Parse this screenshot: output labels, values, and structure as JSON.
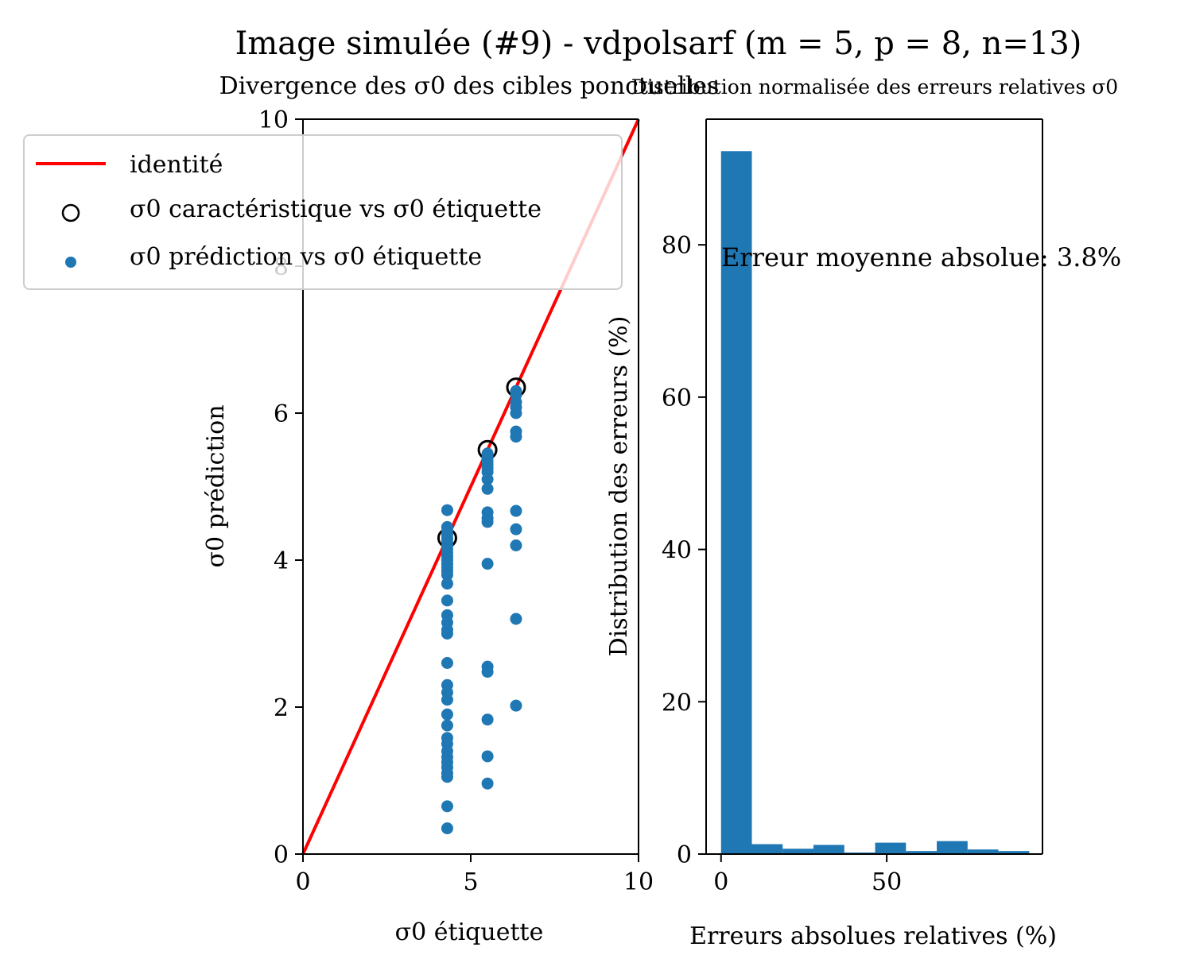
{
  "figure": {
    "suptitle": "Image simulée (#9) - vdpolsarf (m = 5, p = 8, n=13)"
  },
  "chart_data": [
    {
      "type": "scatter",
      "title": "Divergence des σ0 des cibles ponctuelles",
      "xlabel": "σ0 étiquette",
      "ylabel": "σ0 prédiction",
      "xlim": [
        0,
        10
      ],
      "ylim": [
        0,
        10
      ],
      "xticks": [
        0,
        5,
        10
      ],
      "yticks": [
        0,
        2,
        4,
        6,
        8,
        10
      ],
      "grid": false,
      "legend_position": "top-left",
      "identity": {
        "name": "identité",
        "color": "#ff0000",
        "x": [
          0,
          10
        ],
        "y": [
          0,
          10
        ]
      },
      "series": [
        {
          "name": "σ0 caractéristique vs σ0 étiquette",
          "marker": "open-circle",
          "color": "#000000",
          "points": [
            [
              4.3,
              4.3
            ],
            [
              5.5,
              5.5
            ],
            [
              6.35,
              6.35
            ]
          ]
        },
        {
          "name": "σ0 prédiction vs σ0 étiquette",
          "marker": "filled-circle",
          "color": "#1f77b4",
          "points": [
            [
              4.3,
              4.68
            ],
            [
              4.3,
              4.45
            ],
            [
              4.3,
              4.4
            ],
            [
              4.3,
              4.35
            ],
            [
              4.3,
              4.3
            ],
            [
              4.3,
              4.25
            ],
            [
              4.3,
              4.2
            ],
            [
              4.3,
              4.15
            ],
            [
              4.3,
              4.1
            ],
            [
              4.3,
              4.05
            ],
            [
              4.3,
              4.0
            ],
            [
              4.3,
              3.95
            ],
            [
              4.3,
              3.9
            ],
            [
              4.3,
              3.85
            ],
            [
              4.3,
              3.8
            ],
            [
              4.3,
              3.68
            ],
            [
              4.3,
              3.45
            ],
            [
              4.3,
              3.25
            ],
            [
              4.3,
              3.15
            ],
            [
              4.3,
              3.05
            ],
            [
              4.3,
              3.0
            ],
            [
              4.3,
              2.6
            ],
            [
              4.3,
              2.3
            ],
            [
              4.3,
              2.2
            ],
            [
              4.3,
              2.1
            ],
            [
              4.3,
              1.9
            ],
            [
              4.3,
              1.75
            ],
            [
              4.3,
              1.58
            ],
            [
              4.3,
              1.5
            ],
            [
              4.3,
              1.4
            ],
            [
              4.3,
              1.32
            ],
            [
              4.3,
              1.25
            ],
            [
              4.3,
              1.18
            ],
            [
              4.3,
              1.1
            ],
            [
              4.3,
              1.05
            ],
            [
              4.3,
              0.65
            ],
            [
              4.3,
              0.35
            ],
            [
              5.5,
              5.45
            ],
            [
              5.5,
              5.4
            ],
            [
              5.5,
              5.35
            ],
            [
              5.5,
              5.3
            ],
            [
              5.5,
              5.25
            ],
            [
              5.5,
              5.2
            ],
            [
              5.5,
              5.1
            ],
            [
              5.5,
              4.97
            ],
            [
              5.5,
              4.65
            ],
            [
              5.5,
              4.57
            ],
            [
              5.5,
              4.52
            ],
            [
              5.5,
              3.95
            ],
            [
              5.5,
              2.55
            ],
            [
              5.5,
              2.48
            ],
            [
              5.5,
              1.83
            ],
            [
              5.5,
              1.33
            ],
            [
              5.5,
              0.96
            ],
            [
              6.35,
              6.3
            ],
            [
              6.35,
              6.25
            ],
            [
              6.35,
              6.15
            ],
            [
              6.35,
              6.08
            ],
            [
              6.35,
              6.0
            ],
            [
              6.35,
              5.75
            ],
            [
              6.35,
              5.68
            ],
            [
              6.35,
              4.67
            ],
            [
              6.35,
              4.42
            ],
            [
              6.35,
              4.2
            ],
            [
              6.35,
              3.2
            ],
            [
              6.35,
              2.02
            ]
          ]
        }
      ]
    },
    {
      "type": "bar",
      "title": "Distribution normalisée des erreurs relatives σ0",
      "xlabel": "Erreurs absolues relatives (%)",
      "ylabel": "Distribution des erreurs (%)",
      "xlim": [
        -4.5,
        97
      ],
      "ylim": [
        0,
        96.5
      ],
      "xticks": [
        0,
        50
      ],
      "yticks": [
        0,
        20,
        40,
        60,
        80
      ],
      "grid": false,
      "color": "#1f77b4",
      "bin_edges": [
        0,
        9.3,
        18.6,
        27.9,
        37.2,
        46.5,
        55.8,
        65.1,
        74.4,
        83.7,
        93.0
      ],
      "values": [
        92.3,
        1.3,
        0.7,
        1.2,
        0.2,
        1.5,
        0.4,
        1.7,
        0.6,
        0.4
      ],
      "annotation": "Erreur moyenne absolue: 3.8%"
    }
  ]
}
